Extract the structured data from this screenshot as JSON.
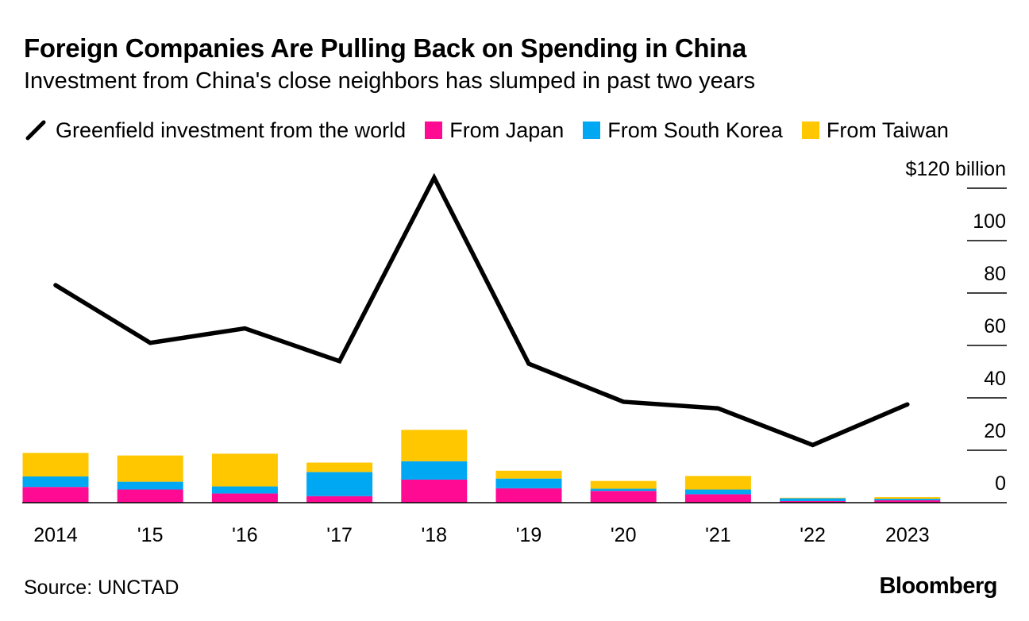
{
  "chart_data": {
    "type": "bar+line",
    "title": "Foreign Companies Are Pulling Back on Spending in China",
    "subtitle": "Investment from China's close neighbors has slumped in past two years",
    "categories": [
      "2014",
      "'15",
      "'16",
      "'17",
      "'18",
      "'19",
      "'20",
      "'21",
      "'22",
      "2023"
    ],
    "line_series": {
      "name": "Greenfield investment from the world",
      "color": "#000000",
      "values": [
        83,
        61,
        66.5,
        54,
        124,
        53,
        38.5,
        36,
        22,
        37.5
      ]
    },
    "bar_series": [
      {
        "name": "From Japan",
        "color": "#ff0a93",
        "values": [
          6,
          5,
          3.5,
          2.5,
          8.8,
          5.5,
          4.5,
          3.2,
          0.6,
          0.9
        ]
      },
      {
        "name": "From South Korea",
        "color": "#00a8f4",
        "values": [
          4,
          3,
          2.7,
          9.2,
          7,
          3.7,
          0.8,
          1.8,
          1.1,
          0.6
        ]
      },
      {
        "name": "From Taiwan",
        "color": "#ffc700",
        "values": [
          9,
          10,
          12.5,
          3.6,
          12,
          3,
          3,
          5.2,
          0.2,
          0.6
        ]
      }
    ],
    "ylim": [
      0,
      120
    ],
    "yticks": [
      0,
      20,
      40,
      60,
      80,
      100,
      120
    ],
    "ytick_labels": [
      "0",
      "20",
      "40",
      "60",
      "80",
      "100",
      "$120 billion"
    ],
    "ylabel": "",
    "xlabel": "",
    "legend_position": "top-left"
  },
  "legend": {
    "line": "Greenfield investment from the world",
    "japan": "From Japan",
    "korea": "From South Korea",
    "taiwan": "From Taiwan"
  },
  "footer": {
    "source": "Source: UNCTAD",
    "brand": "Bloomberg"
  }
}
